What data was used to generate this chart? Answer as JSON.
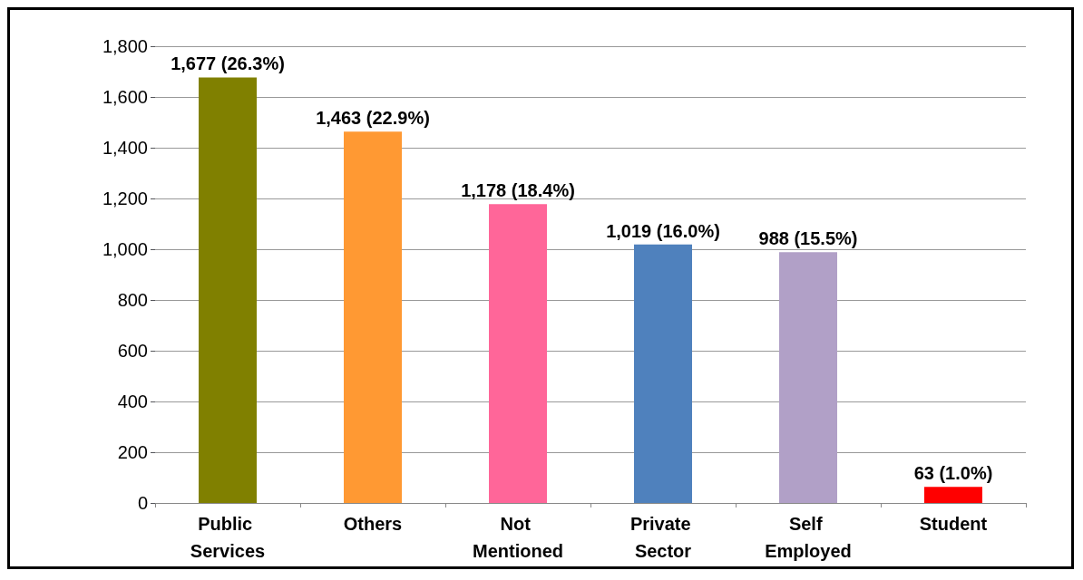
{
  "chart_data": {
    "type": "bar",
    "categories": [
      "Public Services",
      "Others",
      "Not Mentioned",
      "Private Sector",
      "Self Employed",
      "Student"
    ],
    "values": [
      1677,
      1463,
      1178,
      1019,
      988,
      63
    ],
    "colors": [
      "#808000",
      "#ff9933",
      "#ff6699",
      "#4f81bd",
      "#b1a0c7",
      "#ff0000"
    ],
    "value_labels": [
      "1,677 (26.3%)",
      "1,463 (22.9%)",
      "1,178 (18.4%)",
      "1,019 (16.0%)",
      "988 (15.5%)",
      "63 (1.0%)"
    ],
    "ylim": [
      0,
      1800
    ],
    "yticks": [
      0,
      200,
      400,
      600,
      800,
      {
        "value": 1000,
        "label": "1,000"
      },
      {
        "value": 1200,
        "label": "1,200"
      },
      {
        "value": 1400,
        "label": "1,400"
      },
      {
        "value": 1600,
        "label": "1,600"
      },
      {
        "value": 1800,
        "label": "1,800"
      }
    ],
    "grid": "y"
  }
}
